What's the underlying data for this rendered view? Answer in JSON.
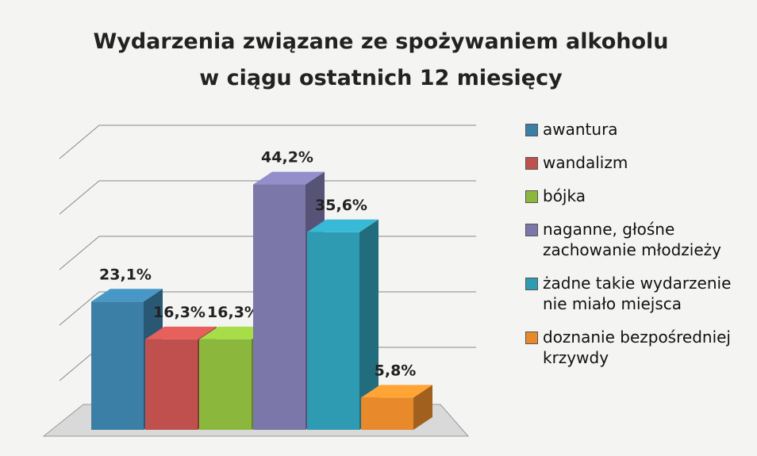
{
  "chart_data": {
    "type": "bar3d",
    "title": "Wydarzenia związane ze spożywaniem alkoholu\nw ciągu ostatnich 12 miesięcy",
    "ylim": [
      0,
      50
    ],
    "yticks": [
      0,
      10,
      20,
      30,
      40,
      50
    ],
    "grid": true,
    "legend": "right",
    "series": [
      {
        "name": "awantura",
        "color": "#3b7ea6",
        "values": [
          23.1
        ],
        "value_labels": [
          "23,1%"
        ]
      },
      {
        "name": "wandalizm",
        "color": "#c0504d",
        "values": [
          16.3
        ],
        "value_labels": [
          "16,3%"
        ]
      },
      {
        "name": "bójka",
        "color": "#8bb83c",
        "values": [
          16.3
        ],
        "value_labels": [
          "16,3%"
        ]
      },
      {
        "name": "naganne, głośne zachowanie młodzieży",
        "color": "#7b77a8",
        "values": [
          44.2
        ],
        "value_labels": [
          "44,2%"
        ]
      },
      {
        "name": "żadne takie wydarzenie nie miało miejsca",
        "color": "#2f9bb3",
        "values": [
          35.6
        ],
        "value_labels": [
          "35,6%"
        ]
      },
      {
        "name": "doznanie bezpośredniej krzywdy",
        "color": "#e8892c",
        "values": [
          5.8
        ],
        "value_labels": [
          "5,8%"
        ]
      }
    ]
  }
}
